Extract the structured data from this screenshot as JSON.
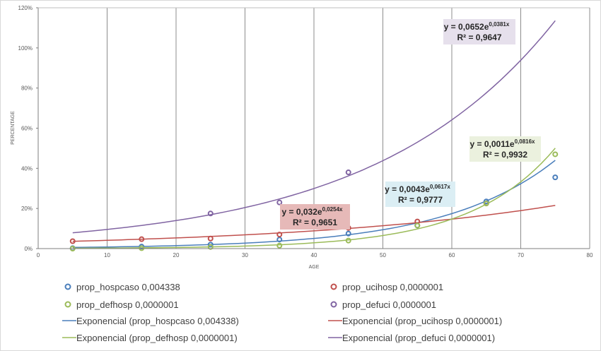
{
  "chart_data": {
    "type": "scatter",
    "xlabel": "AGE",
    "ylabel": "PERCENTAGE",
    "xlim": [
      0,
      80
    ],
    "ylim": [
      0,
      1.2
    ],
    "x_ticks": [
      "0",
      "10",
      "20",
      "30",
      "40",
      "50",
      "60",
      "70",
      "80"
    ],
    "y_ticks": [
      "0%",
      "20%",
      "40%",
      "60%",
      "80%",
      "100%",
      "120%"
    ],
    "x_grid": true,
    "y_grid": false,
    "legend_position": "bottom",
    "series": [
      {
        "name": "prop_hospcaso 0,004338",
        "color": "#4a7ebb",
        "x": [
          5,
          15,
          25,
          35,
          45,
          55,
          65,
          75
        ],
        "y": [
          0.002,
          0.01,
          0.02,
          0.045,
          0.075,
          0.115,
          0.235,
          0.355
        ]
      },
      {
        "name": "prop_ucihosp 0,0000001",
        "color": "#c0504d",
        "x": [
          5,
          15,
          25,
          35,
          45,
          55,
          65
        ],
        "y": [
          0.037,
          0.047,
          0.05,
          0.07,
          0.103,
          0.135,
          0.225
        ]
      },
      {
        "name": "prop_defhosp 0,0000001",
        "color": "#9bbb59",
        "x": [
          5,
          15,
          25,
          35,
          45,
          55,
          65,
          75
        ],
        "y": [
          0.0,
          0.002,
          0.008,
          0.015,
          0.04,
          0.115,
          0.225,
          0.47
        ]
      },
      {
        "name": "prop_defuci 0,0000001",
        "color": "#8064a2",
        "x": [
          25,
          35,
          45
        ],
        "y": [
          0.175,
          0.23,
          0.38
        ]
      }
    ],
    "trendlines": [
      {
        "name": "Exponencial (prop_hospcaso 0,004338)",
        "color": "#4a7ebb",
        "a": 0.0043,
        "b": 0.0617,
        "x_range": [
          5,
          75
        ],
        "equation": "y = 0,0043e",
        "exponent": "0,0617x",
        "r2": "R² = 0,9777",
        "box_color": "#dbeef4"
      },
      {
        "name": "Exponencial (prop_ucihosp 0,0000001)",
        "color": "#c0504d",
        "a": 0.032,
        "b": 0.0254,
        "x_range": [
          5,
          75
        ],
        "equation": "y = 0,032e",
        "exponent": "0,0254x",
        "r2": "R² = 0,9651",
        "box_color": "#e6b9b8"
      },
      {
        "name": "Exponencial (prop_defhosp 0,0000001)",
        "color": "#9bbb59",
        "a": 0.0011,
        "b": 0.0816,
        "x_range": [
          5,
          75
        ],
        "equation": "y = 0,0011e",
        "exponent": "0,0816x",
        "r2": "R² = 0,9932",
        "box_color": "#ebf1de"
      },
      {
        "name": "Exponencial (prop_defuci 0,0000001)",
        "color": "#8064a2",
        "a": 0.0652,
        "b": 0.0381,
        "x_range": [
          5,
          75
        ],
        "equation": "y = 0,0652e",
        "exponent": "0,0381x",
        "r2": "R² = 0,9647",
        "box_color": "#e6e0ec"
      }
    ]
  }
}
